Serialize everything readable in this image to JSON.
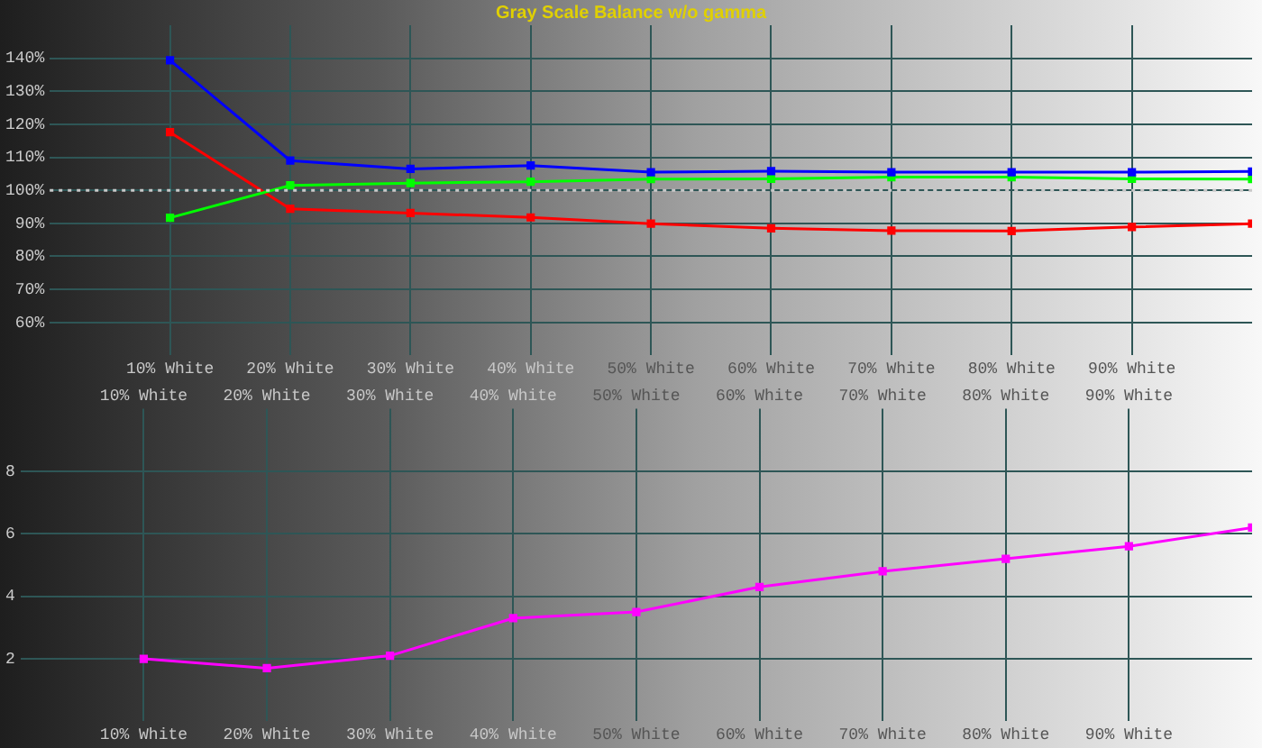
{
  "chart_data": [
    {
      "type": "line",
      "title": "Gray Scale Balance w/o gamma",
      "x": [
        10,
        20,
        30,
        40,
        50,
        60,
        70,
        80,
        90,
        100
      ],
      "series": [
        {
          "color": "#0000ff",
          "values": [
            139.4,
            109,
            106.5,
            107.5,
            105.5,
            105.8,
            105.5,
            105.5,
            105.5,
            105.7
          ]
        },
        {
          "color": "#00ff00",
          "values": [
            91.7,
            101.5,
            102.2,
            102.6,
            103.4,
            103.5,
            104,
            104,
            103.5,
            103.4
          ]
        },
        {
          "color": "#ff0000",
          "values": [
            117.6,
            94.4,
            93.1,
            91.8,
            89.9,
            88.5,
            87.8,
            87.7,
            88.9,
            89.9
          ]
        }
      ],
      "xlim": [
        0,
        100
      ],
      "xticks": [
        {
          "value": 10,
          "label": "10% White"
        },
        {
          "value": 20,
          "label": "20% White"
        },
        {
          "value": 30,
          "label": "30% White"
        },
        {
          "value": 40,
          "label": "40% White"
        },
        {
          "value": 50,
          "label": "50% White"
        },
        {
          "value": 60,
          "label": "60% White"
        },
        {
          "value": 70,
          "label": "70% White"
        },
        {
          "value": 80,
          "label": "80% White"
        },
        {
          "value": 90,
          "label": "90% White"
        }
      ],
      "ylim": [
        50,
        150
      ],
      "yticks": [
        {
          "value": 60,
          "label": "60%"
        },
        {
          "value": 70,
          "label": "70%"
        },
        {
          "value": 80,
          "label": "80%"
        },
        {
          "value": 90,
          "label": "90%"
        },
        {
          "value": 100,
          "label": "100%"
        },
        {
          "value": 110,
          "label": "110%"
        },
        {
          "value": 120,
          "label": "120%"
        },
        {
          "value": 130,
          "label": "130%"
        },
        {
          "value": 140,
          "label": "140%"
        }
      ],
      "ref_lines": [
        {
          "axis": "y",
          "value": 100,
          "color": "#c8c8c8",
          "line_style": "dotted"
        }
      ],
      "grid": true,
      "legend": false,
      "marker": "square",
      "line_style": "solid"
    },
    {
      "type": "line",
      "x": [
        10,
        20,
        30,
        40,
        50,
        60,
        70,
        80,
        90,
        100
      ],
      "series": [
        {
          "color": "#ff00ff",
          "values": [
            2.0,
            1.7,
            2.1,
            3.3,
            3.5,
            4.3,
            4.8,
            5.2,
            5.6,
            6.2
          ]
        }
      ],
      "xlim": [
        0,
        100
      ],
      "xticks": [
        {
          "value": 10,
          "label": "10% White"
        },
        {
          "value": 20,
          "label": "20% White"
        },
        {
          "value": 30,
          "label": "30% White"
        },
        {
          "value": 40,
          "label": "40% White"
        },
        {
          "value": 50,
          "label": "50% White"
        },
        {
          "value": 60,
          "label": "60% White"
        },
        {
          "value": 70,
          "label": "70% White"
        },
        {
          "value": 80,
          "label": "80% White"
        },
        {
          "value": 90,
          "label": "90% White"
        }
      ],
      "x2lim": [
        0,
        100
      ],
      "x2ticks": [
        {
          "value": 10,
          "label": "10% White"
        },
        {
          "value": 20,
          "label": "20% White"
        },
        {
          "value": 30,
          "label": "30% White"
        },
        {
          "value": 40,
          "label": "40% White"
        },
        {
          "value": 50,
          "label": "50% White"
        },
        {
          "value": 60,
          "label": "60% White"
        },
        {
          "value": 70,
          "label": "70% White"
        },
        {
          "value": 80,
          "label": "80% White"
        },
        {
          "value": 90,
          "label": "90% White"
        }
      ],
      "ylim": [
        0,
        10
      ],
      "yticks": [
        2,
        4,
        6,
        8
      ],
      "grid": true,
      "legend": false,
      "marker": "square",
      "line_style": "solid"
    }
  ]
}
